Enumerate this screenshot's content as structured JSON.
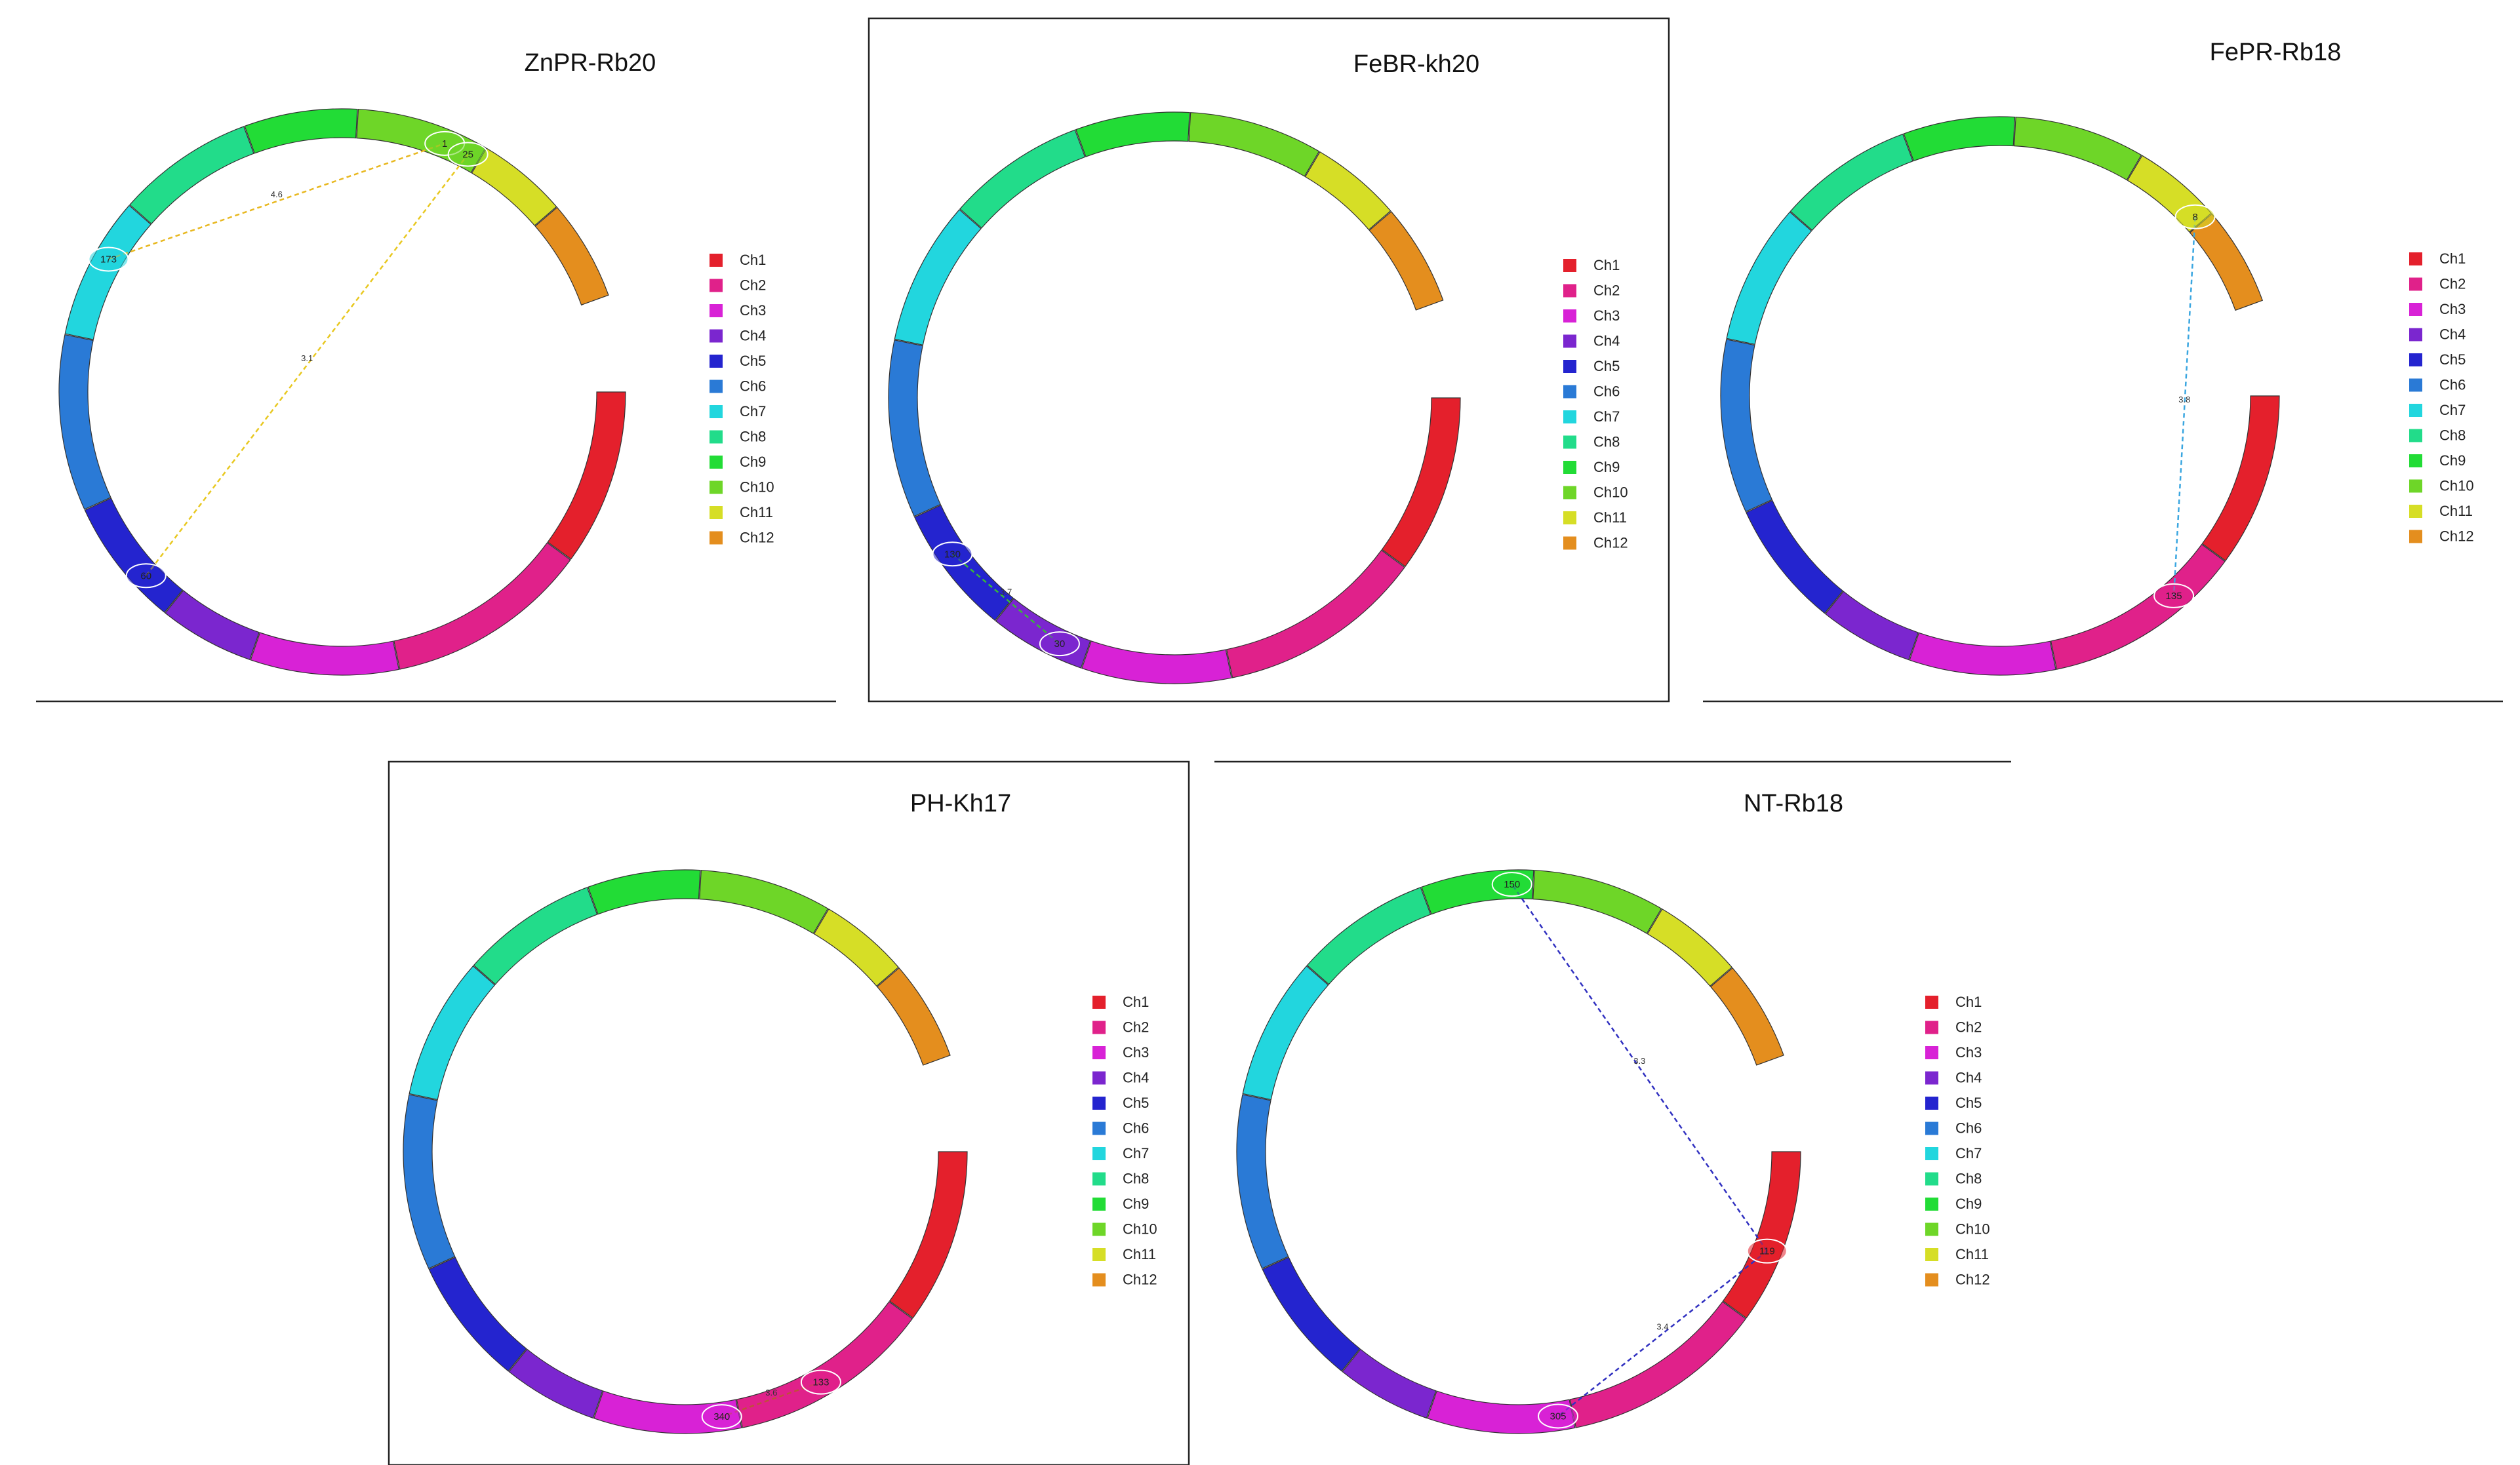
{
  "chromosomes": [
    {
      "name": "Ch1",
      "color": "#e4202c"
    },
    {
      "name": "Ch2",
      "color": "#e0218a"
    },
    {
      "name": "Ch3",
      "color": "#d822d6"
    },
    {
      "name": "Ch4",
      "color": "#7b26cf"
    },
    {
      "name": "Ch5",
      "color": "#2424cf"
    },
    {
      "name": "Ch6",
      "color": "#2a7ad6"
    },
    {
      "name": "Ch7",
      "color": "#22d6de"
    },
    {
      "name": "Ch8",
      "color": "#22dc8a"
    },
    {
      "name": "Ch9",
      "color": "#22dc36"
    },
    {
      "name": "Ch10",
      "color": "#6ed628"
    },
    {
      "name": "Ch11",
      "color": "#d6de26"
    },
    {
      "name": "Ch12",
      "color": "#e48e1e"
    }
  ],
  "panels": [
    {
      "title": "ZnPR-Rb20",
      "links": [
        {
          "from": {
            "chr": "Ch7",
            "pos": 0.6,
            "label": "173"
          },
          "to": {
            "chr": "Ch10",
            "pos": 0.7,
            "label": "1"
          },
          "lod": "4.6",
          "color": "#e8b820"
        },
        {
          "from": {
            "chr": "Ch5",
            "pos": 0.3,
            "label": "60"
          },
          "to": {
            "chr": "Ch10",
            "pos": 0.9,
            "label": "25"
          },
          "lod": "3.1",
          "color": "#e8c820"
        }
      ]
    },
    {
      "title": "FeBR-kh20",
      "links": [
        {
          "from": {
            "chr": "Ch5",
            "pos": 0.6,
            "label": "130"
          },
          "to": {
            "chr": "Ch4",
            "pos": 0.3,
            "label": "30"
          },
          "lod": "3.7",
          "color": "#38b838"
        }
      ]
    },
    {
      "title": "FePR-Rb18",
      "links": [
        {
          "from": {
            "chr": "Ch11",
            "pos": 0.9,
            "label": "8"
          },
          "to": {
            "chr": "Ch2",
            "pos": 0.3,
            "label": "135"
          },
          "lod": "3.8",
          "color": "#3aa6e0"
        }
      ]
    },
    {
      "title": "PH-Kh17",
      "links": [
        {
          "from": {
            "chr": "Ch2",
            "pos": 0.55,
            "label": "133"
          },
          "to": {
            "chr": "Ch3",
            "pos": 0.12,
            "label": "340"
          },
          "lod": "3.6",
          "color": "#c0503a"
        }
      ]
    },
    {
      "title": "NT-Rb18",
      "links": [
        {
          "from": {
            "chr": "Ch1",
            "pos": 0.6,
            "label": "119"
          },
          "to": {
            "chr": "Ch9",
            "pos": 0.8,
            "label": "150"
          },
          "lod": "3.3",
          "color": "#3030c0"
        },
        {
          "from": {
            "chr": "Ch1",
            "pos": 0.6,
            "label": "119"
          },
          "to": {
            "chr": "Ch3",
            "pos": 0.1,
            "label": "305"
          },
          "lod": "3.4",
          "color": "#3030c0"
        }
      ]
    }
  ]
}
